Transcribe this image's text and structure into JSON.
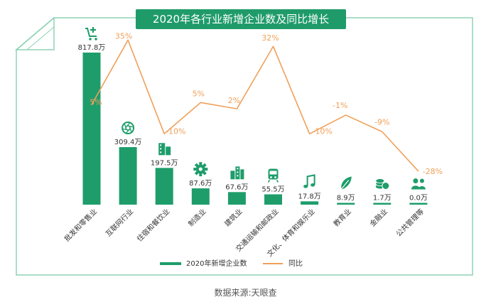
{
  "colors": {
    "bar": "#1e9d6b",
    "line": "#f0a05a",
    "border": "#8dd3b4",
    "text": "#333333"
  },
  "title": "2020年各行业新增企业数及同比增长",
  "source": "数据来源:天眼查",
  "chart_data": {
    "type": "bar",
    "title": "2020年各行业新增企业数及同比增长",
    "categories": [
      "批发和零售业",
      "互联网行业",
      "住宿和餐饮业",
      "制造业",
      "建筑业",
      "交通运输和邮政业",
      "文化、体育和娱乐业",
      "教育业",
      "金融业",
      "公共管理等"
    ],
    "category_icons": [
      "cart-icon",
      "aperture-icon",
      "building-icon",
      "gear-icon",
      "city-icon",
      "train-icon",
      "music-note-icon",
      "feather-icon",
      "coins-icon",
      "people-icon"
    ],
    "series": [
      {
        "name": "2020年新增企业数",
        "type": "bar",
        "values": [
          817.8,
          309.4,
          197.5,
          87.6,
          67.6,
          55.5,
          17.8,
          8.9,
          1.7,
          0.0
        ],
        "labels": [
          "817.8万",
          "309.4万",
          "197.5万",
          "87.6万",
          "67.6万",
          "55.5万",
          "17.8万",
          "8.9万",
          "1.7万",
          "0.0万"
        ]
      },
      {
        "name": "同比",
        "type": "line",
        "values": [
          5,
          35,
          -10,
          5,
          2,
          32,
          -10,
          -1,
          -9,
          -28
        ],
        "labels": [
          "5%",
          "35%",
          "-10%",
          "5%",
          "2%",
          "32%",
          "-10%",
          "-1%",
          "-9%",
          "-28%"
        ]
      }
    ],
    "legend": {
      "position": "bottom"
    },
    "grid": false
  }
}
